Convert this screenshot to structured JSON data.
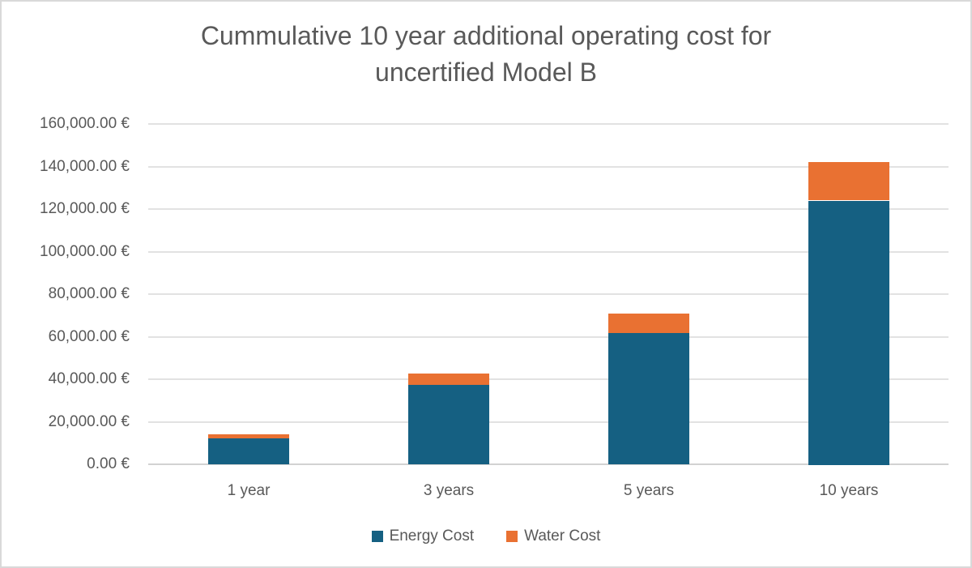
{
  "chart_data": {
    "type": "bar",
    "stacked": true,
    "title": "Cummulative 10 year additional operating cost for uncertified Model B",
    "title_lines": [
      "Cummulative 10 year additional operating cost for",
      "uncertified Model B"
    ],
    "categories": [
      "1 year",
      "3 years",
      "5 years",
      "10 years"
    ],
    "series": [
      {
        "name": "Energy Cost",
        "color": "#156082",
        "values": [
          12400,
          37200,
          62000,
          124000
        ]
      },
      {
        "name": "Water Cost",
        "color": "#E97132",
        "values": [
          1800,
          5400,
          9000,
          18000
        ]
      }
    ],
    "stack_totals": [
      14200,
      42600,
      71000,
      142000
    ],
    "xlabel": "",
    "ylabel": "",
    "ylim": [
      0,
      160000
    ],
    "ytick_step": 20000,
    "y_ticks": [
      {
        "value": 0,
        "label": "0.00 €"
      },
      {
        "value": 20000,
        "label": "20,000.00 €"
      },
      {
        "value": 40000,
        "label": "40,000.00 €"
      },
      {
        "value": 60000,
        "label": "60,000.00 €"
      },
      {
        "value": 80000,
        "label": "80,000.00 €"
      },
      {
        "value": 100000,
        "label": "100,000.00 €"
      },
      {
        "value": 120000,
        "label": "120,000.00 €"
      },
      {
        "value": 140000,
        "label": "140,000.00 €"
      },
      {
        "value": 160000,
        "label": "160,000.00 €"
      }
    ],
    "grid": "horizontal",
    "legend_position": "bottom",
    "colors": {
      "text": "#595959",
      "gridline": "#E2E2E2",
      "axis_line": "#D2D2D2",
      "border": "#D9D9D9",
      "background": "#FFFFFF"
    }
  }
}
